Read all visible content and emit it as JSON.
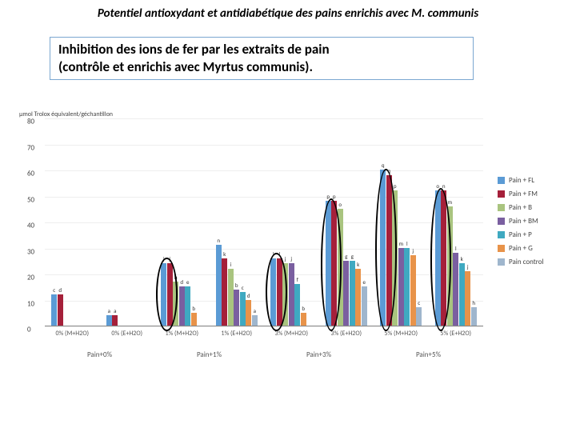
{
  "title": "Potentiel antioxydant et antidiabétique des pains enrichis avec  M. communis",
  "subtitle_line1": "Inhibition des ions de fer par les extraits de  pain",
  "subtitle_line2": "(contrôle et enrichis avec Myrtus communis).",
  "chart": {
    "type": "bar",
    "y_axis_label": "µmol Trolox équivalent/géchantillon",
    "ylim": [
      0,
      80
    ],
    "ytick_step": 10,
    "tick_fontsize": 9,
    "label_fontsize": 7,
    "series": [
      {
        "name": "Pain + FL",
        "color": "#5b9bd5"
      },
      {
        "name": "Pain + FM",
        "color": "#a5203a"
      },
      {
        "name": "Pain + B",
        "color": "#a9c47f"
      },
      {
        "name": "Pain + BM",
        "color": "#7a5fa0"
      },
      {
        "name": "Pain + P",
        "color": "#3fa9c1"
      },
      {
        "name": "Pain + G",
        "color": "#e8934a"
      },
      {
        "name": "Pain control",
        "color": "#9fb6cd"
      }
    ],
    "groups": [
      {
        "top": "0% (M+H2O)",
        "bottom": "Pain+0%",
        "values": [
          12,
          12,
          0,
          0,
          0,
          0,
          0
        ],
        "labels": [
          "c",
          "d",
          "",
          "",
          "",
          "",
          ""
        ]
      },
      {
        "top": "0% (E+H2O)",
        "bottom": "",
        "values": [
          4,
          4,
          0,
          0,
          0,
          0,
          0
        ],
        "labels": [
          "a",
          "a",
          "",
          "",
          "",
          "",
          ""
        ]
      },
      {
        "top": "1% (M+H2O)",
        "bottom": "Pain+1%",
        "values": [
          24,
          24,
          17,
          15,
          15,
          5,
          0
        ],
        "labels": [
          "j",
          "j",
          "h",
          "d",
          "e",
          "b",
          ""
        ]
      },
      {
        "top": "1% (E+H2O)",
        "bottom": "",
        "values": [
          31,
          26,
          22,
          14,
          13,
          10,
          4
        ],
        "labels": [
          "n",
          "k",
          "i",
          "b",
          "c",
          "d",
          "a"
        ]
      },
      {
        "top": "3% (M+H2O)",
        "bottom": "Pain+3%",
        "values": [
          26,
          26,
          24,
          24,
          16,
          5,
          0
        ],
        "labels": [
          "l",
          "l",
          "j",
          "j",
          "f",
          "b",
          ""
        ]
      },
      {
        "top": "3% (E+H2O)",
        "bottom": "",
        "values": [
          48,
          48,
          45,
          25,
          25,
          22,
          15
        ],
        "labels": [
          "p",
          "p",
          "o",
          "g",
          "g",
          "k",
          "e"
        ]
      },
      {
        "top": "5% (M+H2O)",
        "bottom": "Pain+5%",
        "values": [
          60,
          58,
          52,
          30,
          30,
          27,
          7
        ],
        "labels": [
          "q",
          "q",
          "p",
          "m",
          "l",
          "j",
          "c"
        ]
      },
      {
        "top": "5% (E+H2O)",
        "bottom": "",
        "values": [
          52,
          52,
          46,
          28,
          24,
          21,
          7
        ],
        "labels": [
          "o",
          "n",
          "m",
          "l",
          "k",
          "j",
          "h"
        ]
      }
    ],
    "ellipses": [
      {
        "group_index": 2,
        "bars": [
          0,
          1
        ],
        "height_ratio": 0.95
      },
      {
        "group_index": 4,
        "bars": [
          0,
          1
        ],
        "height_ratio": 0.95
      },
      {
        "group_index": 5,
        "bars": [
          0,
          1
        ],
        "height_ratio": 0.95
      },
      {
        "group_index": 6,
        "bars": [
          0,
          1
        ],
        "height_ratio": 0.95
      },
      {
        "group_index": 7,
        "bars": [
          0,
          1
        ],
        "height_ratio": 0.95
      }
    ]
  }
}
